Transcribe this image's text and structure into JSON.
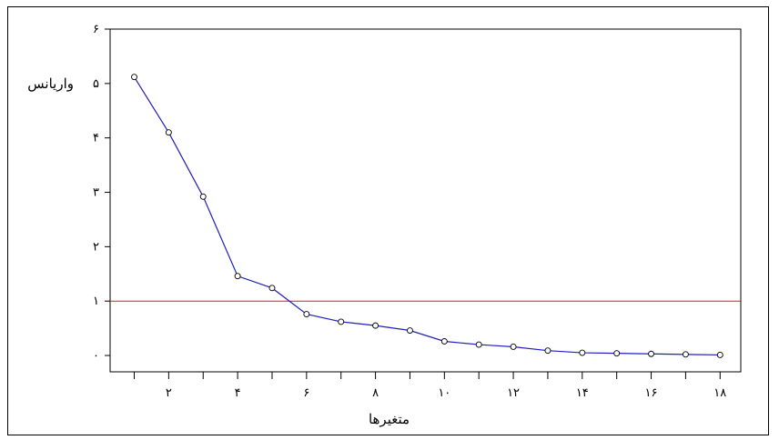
{
  "chart_data": {
    "type": "line",
    "title": "",
    "xlabel": "متغیرها",
    "ylabel": "واریانس",
    "x": [
      1,
      2,
      3,
      4,
      5,
      6,
      7,
      8,
      9,
      10,
      11,
      12,
      13,
      14,
      15,
      16,
      17,
      18
    ],
    "series": [
      {
        "values": [
          5.12,
          4.1,
          2.92,
          1.46,
          1.24,
          0.76,
          0.62,
          0.55,
          0.46,
          0.26,
          0.2,
          0.16,
          0.09,
          0.05,
          0.04,
          0.03,
          0.02,
          0.01
        ],
        "color": "#1f1fbf"
      }
    ],
    "reference_line": {
      "y": 1,
      "color": "#d02020"
    },
    "xlim": [
      0.3,
      18.6
    ],
    "ylim": [
      -0.3,
      6
    ],
    "x_tick_labels": [
      {
        "value": 2,
        "label": "۲"
      },
      {
        "value": 4,
        "label": "۴"
      },
      {
        "value": 6,
        "label": "۶"
      },
      {
        "value": 8,
        "label": "۸"
      },
      {
        "value": 10,
        "label": "۱۰"
      },
      {
        "value": 12,
        "label": "۱۲"
      },
      {
        "value": 14,
        "label": "۱۴"
      },
      {
        "value": 16,
        "label": "۱۶"
      },
      {
        "value": 18,
        "label": "۱۸"
      }
    ],
    "y_tick_labels": [
      {
        "value": 0,
        "label": "۰"
      },
      {
        "value": 1,
        "label": "۱"
      },
      {
        "value": 2,
        "label": "۲"
      },
      {
        "value": 3,
        "label": "۳"
      },
      {
        "value": 4,
        "label": "۴"
      },
      {
        "value": 5,
        "label": "۵"
      },
      {
        "value": 6,
        "label": "۶"
      }
    ],
    "grid": false,
    "legend": "none"
  }
}
